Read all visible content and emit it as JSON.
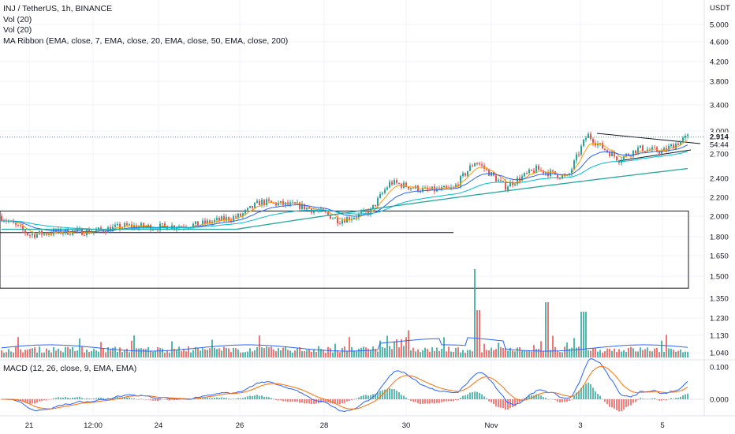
{
  "header": {
    "symbol_line": "INJ / TetherUS, 1h, BINANCE",
    "indicators": [
      "Vol (20)",
      "Vol (20)",
      "MA Ribbon (EMA, close, 7, EMA, close, 20, EMA, close, 50, EMA, close, 200)"
    ],
    "macd_label": "MACD (12, 26, close, 9, EMA, EMA)"
  },
  "price_axis": {
    "currency": "USDT",
    "ticks": [
      "5.000",
      "4.600",
      "4.200",
      "3.800",
      "3.400",
      "3.000",
      "2.700",
      "2.400",
      "2.200",
      "2.000",
      "1.800",
      "1.650",
      "1.500",
      "1.350",
      "1.230",
      "1.130",
      "1.040"
    ],
    "current_price": "2.914",
    "countdown": "54:44",
    "colors": {
      "up": "#26a69a",
      "down": "#ef5350",
      "ema7": "#ff9800",
      "ema20": "#2962ff",
      "ema200": "#26a69a"
    }
  },
  "macd_axis": {
    "ticks": [
      "0.100",
      "0.000"
    ]
  },
  "time_axis": {
    "ticks": [
      "21",
      "12:00",
      "24",
      "26",
      "28",
      "30",
      "Nov",
      "3",
      "5"
    ]
  },
  "chart_data": {
    "type": "candlestick",
    "x_range": [
      "Oct 20",
      "Nov 5"
    ],
    "ylim": [
      1.04,
      5.0
    ],
    "y_scale": "log",
    "price_path": [
      [
        "Oct 20",
        2.0
      ],
      [
        "Oct 21",
        1.83
      ],
      [
        "Oct 22",
        1.86
      ],
      [
        "Oct 23",
        1.9
      ],
      [
        "Oct 24",
        1.9
      ],
      [
        "Oct 25",
        1.92
      ],
      [
        "Oct 26",
        2.14
      ],
      [
        "Oct 27",
        2.1
      ],
      [
        "Oct 28",
        1.97
      ],
      [
        "Oct 29",
        2.35
      ],
      [
        "Oct 30",
        2.26
      ],
      [
        "Oct 31",
        2.5
      ],
      [
        "Nov 1",
        2.55
      ],
      [
        "Nov 2",
        2.68
      ],
      [
        "Nov 3",
        2.95
      ],
      [
        "Nov 4",
        2.62
      ],
      [
        "Nov 5",
        2.914
      ]
    ],
    "current_price": 2.914,
    "annotations": [
      "horizontal support line ~1.85",
      "rectangle zone 1.42–2.05",
      "symmetrical triangle Nov 3–5"
    ],
    "volume_spike": "Nov 1",
    "macd_range": [
      -0.03,
      0.11
    ]
  }
}
